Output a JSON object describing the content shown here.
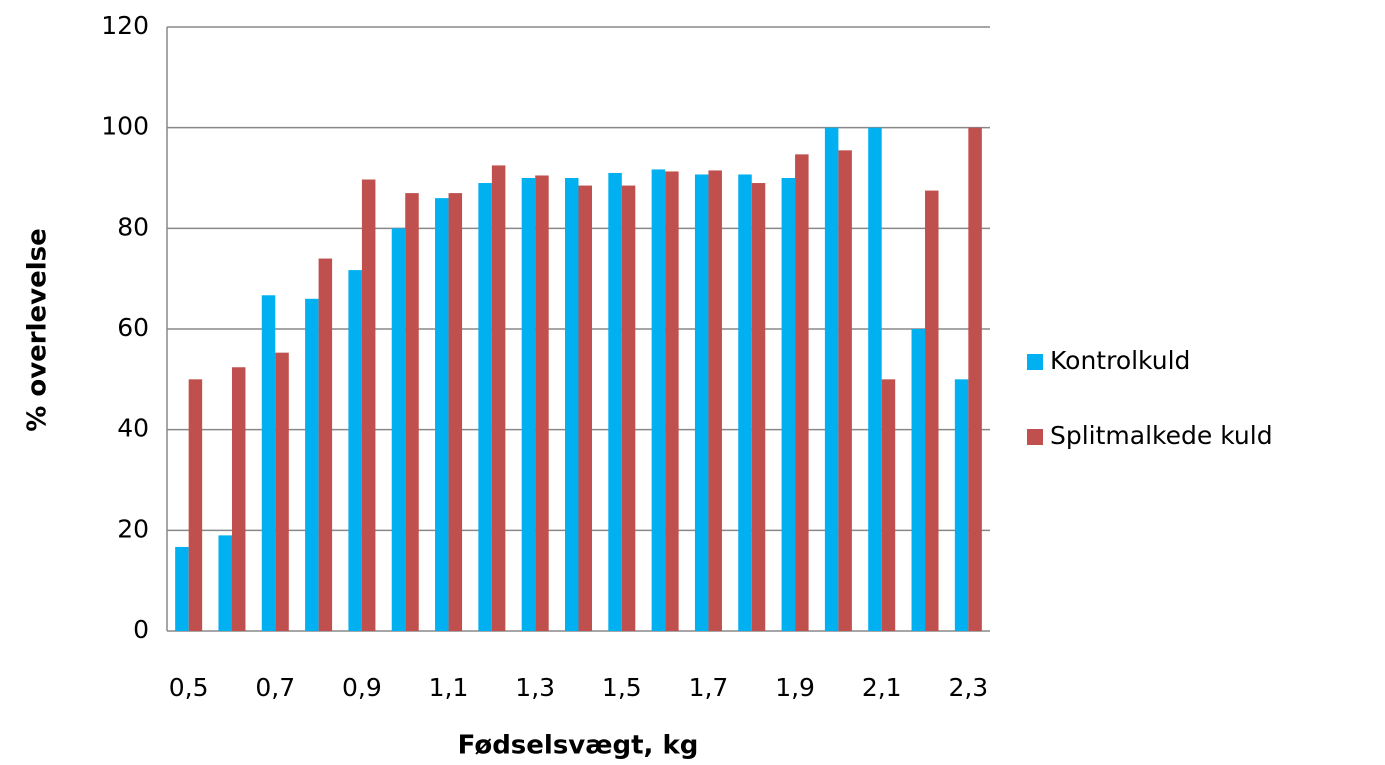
{
  "chart_data": {
    "type": "bar",
    "x_label": "Fødselsvægt, kg",
    "y_label": "% overlevelse",
    "categories": [
      "0,5",
      null,
      "0,7",
      null,
      "0,9",
      null,
      "1,1",
      null,
      "1,3",
      null,
      "1,5",
      null,
      "1,7",
      null,
      "1,9",
      null,
      "2,1",
      null,
      "2,3"
    ],
    "series": [
      {
        "name": "Kontrolkuld",
        "color": "#00b0f0",
        "values": [
          16.7,
          19,
          66.7,
          66,
          71.7,
          80,
          86,
          89,
          90,
          90,
          91,
          91.7,
          90.7,
          90.7,
          90,
          100,
          100,
          60,
          50
        ]
      },
      {
        "name": "Splitmalkede kuld",
        "color": "#c0504d",
        "values": [
          50,
          52.4,
          55.3,
          74,
          89.7,
          87,
          87,
          92.5,
          90.5,
          88.5,
          88.5,
          91.3,
          91.5,
          89,
          94.7,
          95.5,
          50,
          87.5,
          100
        ]
      }
    ],
    "ylim": [
      0,
      120
    ],
    "yticks": [
      0,
      20,
      40,
      60,
      80,
      100,
      120
    ],
    "grid": true,
    "legend": "right"
  }
}
